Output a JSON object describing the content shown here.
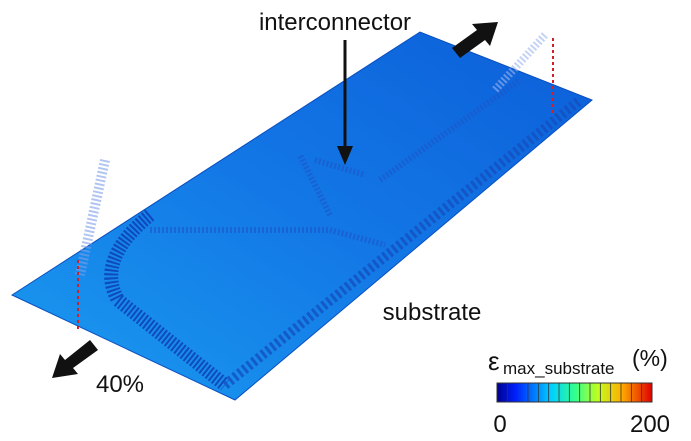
{
  "labels": {
    "interconnector": "interconnector",
    "substrate": "substrate",
    "strain": "40%"
  },
  "colorbar": {
    "symbol": "ε",
    "subscript": "max_substrate",
    "unit": "(%)",
    "min": 0,
    "max": 200
  }
}
